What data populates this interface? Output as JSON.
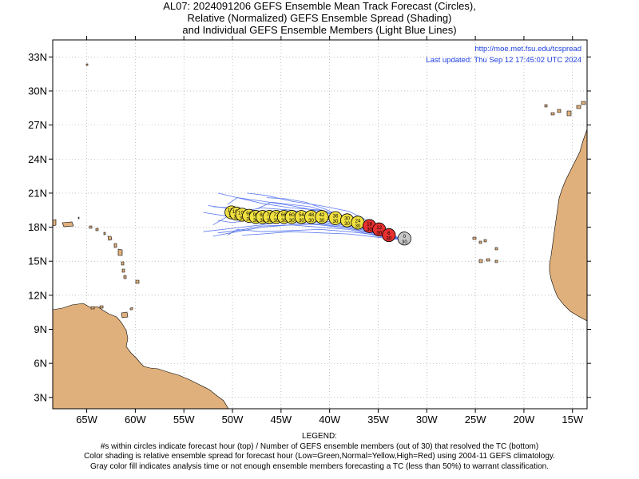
{
  "title": {
    "line1": "AL07: 2024091206 GEFS Ensemble Mean Track Forecast (Circles),",
    "line2": "Relative (Normalized) GEFS Ensemble Spread (Shading)",
    "line3": "and Individual GEFS Ensemble Members (Light Blue Lines)"
  },
  "credit": {
    "url": "http://moe.met.fsu.edu/tcspread",
    "updated": "Last updated: Thu Sep 12 17:45:02 UTC 2024"
  },
  "legend": {
    "heading": "LEGEND:",
    "line1": "#s within circles indicate forecast hour (top) / Number of GEFS ensemble members (out of 30) that resolved the TC (bottom)",
    "line2": "Color shading is relative ensemble spread for forecast hour (Low=Green,Normal=Yellow,High=Red) using 2004-11 GEFS climatology.",
    "line3": "Gray color fill indicates analysis time or not enough ensemble members forecasting a TC (less than 50%) to warrant classification."
  },
  "colors": {
    "land": "#e0b07c",
    "ocean": "#ffffff",
    "member_line": "#5a78f0",
    "spread_normal": "#f0e040",
    "spread_high": "#e83030",
    "analysis": "#c8c8c8",
    "credit_text": "#2040e0"
  },
  "map": {
    "lon_range": [
      -68.5,
      -13.5
    ],
    "lat_range": [
      2.0,
      34.5
    ],
    "lat_ticks": [
      {
        "value": 3,
        "label": "3N"
      },
      {
        "value": 6,
        "label": "6N"
      },
      {
        "value": 9,
        "label": "9N"
      },
      {
        "value": 12,
        "label": "12N"
      },
      {
        "value": 15,
        "label": "15N"
      },
      {
        "value": 18,
        "label": "18N"
      },
      {
        "value": 21,
        "label": "21N"
      },
      {
        "value": 24,
        "label": "24N"
      },
      {
        "value": 27,
        "label": "27N"
      },
      {
        "value": 30,
        "label": "30N"
      },
      {
        "value": 33,
        "label": "33N"
      }
    ],
    "lon_ticks": [
      {
        "value": -65,
        "label": "65W"
      },
      {
        "value": -60,
        "label": "60W"
      },
      {
        "value": -55,
        "label": "55W"
      },
      {
        "value": -50,
        "label": "50W"
      },
      {
        "value": -45,
        "label": "45W"
      },
      {
        "value": -40,
        "label": "40W"
      },
      {
        "value": -35,
        "label": "35W"
      },
      {
        "value": -30,
        "label": "30W"
      },
      {
        "value": -25,
        "label": "25W"
      },
      {
        "value": -20,
        "label": "20W"
      },
      {
        "value": -15,
        "label": "15W"
      }
    ]
  },
  "chart_data": {
    "type": "scatter",
    "title": "AL07: 2024091206 GEFS Ensemble Mean Track Forecast (Circles)",
    "xlabel": "",
    "ylabel": "",
    "xlim": [
      -68.5,
      -13.5
    ],
    "ylim": [
      2.0,
      34.5
    ],
    "grid": true,
    "mean_track": [
      {
        "lon": -32.3,
        "lat": 17.0,
        "hour": "0",
        "members": "30",
        "spread": "analysis"
      },
      {
        "lon": -33.9,
        "lat": 17.3,
        "hour": "6",
        "members": "30",
        "spread": "high"
      },
      {
        "lon": -34.9,
        "lat": 17.8,
        "hour": "12",
        "members": "30",
        "spread": "high"
      },
      {
        "lon": -35.9,
        "lat": 18.1,
        "hour": "18",
        "members": "30",
        "spread": "high"
      },
      {
        "lon": -37.1,
        "lat": 18.4,
        "hour": "24",
        "members": "30",
        "spread": "normal"
      },
      {
        "lon": -38.2,
        "lat": 18.6,
        "hour": "30",
        "members": "30",
        "spread": "normal"
      },
      {
        "lon": -39.4,
        "lat": 18.8,
        "hour": "36",
        "members": "30",
        "spread": "normal"
      },
      {
        "lon": -40.8,
        "lat": 18.9,
        "hour": "42",
        "members": "30",
        "spread": "normal"
      },
      {
        "lon": -41.9,
        "lat": 18.9,
        "hour": "48",
        "members": "30",
        "spread": "normal"
      },
      {
        "lon": -42.9,
        "lat": 18.9,
        "hour": "54",
        "members": "30",
        "spread": "normal"
      },
      {
        "lon": -43.9,
        "lat": 18.9,
        "hour": "60",
        "members": "30",
        "spread": "normal"
      },
      {
        "lon": -44.7,
        "lat": 18.9,
        "hour": "66",
        "members": "30",
        "spread": "normal"
      },
      {
        "lon": -45.5,
        "lat": 18.9,
        "hour": "72",
        "members": "30",
        "spread": "normal"
      },
      {
        "lon": -46.2,
        "lat": 18.9,
        "hour": "78",
        "members": "30",
        "spread": "normal"
      },
      {
        "lon": -46.9,
        "lat": 18.9,
        "hour": "84",
        "members": "30",
        "spread": "normal"
      },
      {
        "lon": -47.6,
        "lat": 18.9,
        "hour": "90",
        "members": "30",
        "spread": "normal"
      },
      {
        "lon": -48.3,
        "lat": 19.0,
        "hour": "96",
        "members": "30",
        "spread": "normal"
      },
      {
        "lon": -49.0,
        "lat": 19.1,
        "hour": "102",
        "members": "30",
        "spread": "normal"
      },
      {
        "lon": -49.6,
        "lat": 19.2,
        "hour": "108",
        "members": "30",
        "spread": "normal"
      },
      {
        "lon": -50.1,
        "lat": 19.3,
        "hour": "120",
        "members": "30",
        "spread": "normal"
      }
    ],
    "members": [
      [
        [
          -32.6,
          16.9
        ],
        [
          -35,
          17.5
        ],
        [
          -38,
          18.2
        ],
        [
          -41,
          18.6
        ],
        [
          -44,
          18.8
        ],
        [
          -47,
          19.1
        ],
        [
          -50,
          19.6
        ],
        [
          -52.5,
          19.9
        ]
      ],
      [
        [
          -32.6,
          16.9
        ],
        [
          -35,
          17.4
        ],
        [
          -38,
          17.9
        ],
        [
          -41,
          18.2
        ],
        [
          -44,
          18.4
        ],
        [
          -47,
          18.6
        ],
        [
          -50,
          18.9
        ],
        [
          -53,
          19.3
        ]
      ],
      [
        [
          -32.6,
          16.9
        ],
        [
          -35,
          17.8
        ],
        [
          -38,
          18.8
        ],
        [
          -41,
          19.4
        ],
        [
          -44,
          19.9
        ],
        [
          -47,
          20.3
        ],
        [
          -49.5,
          20.6
        ],
        [
          -50.5,
          20.0
        ]
      ],
      [
        [
          -32.6,
          16.9
        ],
        [
          -35,
          17.2
        ],
        [
          -38,
          17.8
        ],
        [
          -41,
          18.0
        ],
        [
          -44,
          18.2
        ],
        [
          -47,
          18.1
        ],
        [
          -49.5,
          17.7
        ],
        [
          -51.5,
          17.5
        ]
      ],
      [
        [
          -32.6,
          16.9
        ],
        [
          -35,
          17.6
        ],
        [
          -38,
          18.5
        ],
        [
          -41,
          19.1
        ],
        [
          -44,
          19.5
        ],
        [
          -47,
          19.7
        ],
        [
          -50,
          19.2
        ],
        [
          -52,
          18.2
        ]
      ],
      [
        [
          -32.6,
          16.9
        ],
        [
          -35,
          17.3
        ],
        [
          -38,
          17.6
        ],
        [
          -41,
          17.8
        ],
        [
          -44,
          17.7
        ],
        [
          -47,
          17.6
        ],
        [
          -49.5,
          17.8
        ],
        [
          -50.5,
          17.3
        ]
      ],
      [
        [
          -32.6,
          16.9
        ],
        [
          -35,
          18.1
        ],
        [
          -38,
          19.4
        ],
        [
          -41,
          19.9
        ],
        [
          -44,
          20.3
        ],
        [
          -46.5,
          20.8
        ],
        [
          -48.5,
          21.0
        ]
      ],
      [
        [
          -32.6,
          16.9
        ],
        [
          -35,
          17.4
        ],
        [
          -38,
          18.1
        ],
        [
          -41,
          18.5
        ],
        [
          -44,
          18.6
        ],
        [
          -47,
          18.2
        ],
        [
          -50,
          17.9
        ],
        [
          -53,
          17.6
        ]
      ],
      [
        [
          -32.6,
          16.9
        ],
        [
          -35,
          17.9
        ],
        [
          -38,
          18.9
        ],
        [
          -41,
          19.5
        ],
        [
          -44,
          19.7
        ],
        [
          -47,
          20.1
        ],
        [
          -49.5,
          20.6
        ],
        [
          -51.5,
          21.0
        ]
      ],
      [
        [
          -32.6,
          16.9
        ],
        [
          -35,
          17.1
        ],
        [
          -38,
          17.4
        ],
        [
          -41,
          17.5
        ],
        [
          -44,
          17.6
        ],
        [
          -47,
          17.4
        ],
        [
          -49,
          17.3
        ]
      ],
      [
        [
          -32.6,
          16.9
        ],
        [
          -35,
          17.6
        ],
        [
          -38,
          18.6
        ],
        [
          -40,
          19.3
        ],
        [
          -42,
          19.8
        ],
        [
          -44,
          20.0
        ],
        [
          -46,
          20.2
        ],
        [
          -47.5,
          19.6
        ]
      ],
      [
        [
          -32.6,
          16.9
        ],
        [
          -35,
          17.5
        ],
        [
          -38,
          18.0
        ],
        [
          -41,
          18.4
        ],
        [
          -44,
          18.9
        ],
        [
          -47,
          19.4
        ],
        [
          -50,
          19.7
        ],
        [
          -52,
          19.8
        ]
      ],
      [
        [
          -32.6,
          16.9
        ],
        [
          -35,
          17.3
        ],
        [
          -38,
          17.9
        ],
        [
          -41,
          18.3
        ],
        [
          -44,
          18.2
        ],
        [
          -47,
          18.0
        ],
        [
          -49.5,
          17.6
        ],
        [
          -52,
          17.2
        ]
      ],
      [
        [
          -32.6,
          16.9
        ],
        [
          -35,
          17.7
        ],
        [
          -38,
          18.7
        ],
        [
          -40.5,
          19.6
        ],
        [
          -42.5,
          20.2
        ],
        [
          -44.5,
          20.5
        ],
        [
          -46.5,
          20.6
        ]
      ],
      [
        [
          -32.6,
          16.9
        ],
        [
          -35,
          17.5
        ],
        [
          -38,
          18.3
        ],
        [
          -41,
          18.8
        ],
        [
          -44,
          19.0
        ],
        [
          -47,
          18.8
        ],
        [
          -50,
          18.4
        ],
        [
          -51.5,
          18.6
        ]
      ]
    ],
    "annotations": [
      "http://moe.met.fsu.edu/tcspread",
      "Last updated: Thu Sep 12 17:45:02 UTC 2024"
    ]
  }
}
